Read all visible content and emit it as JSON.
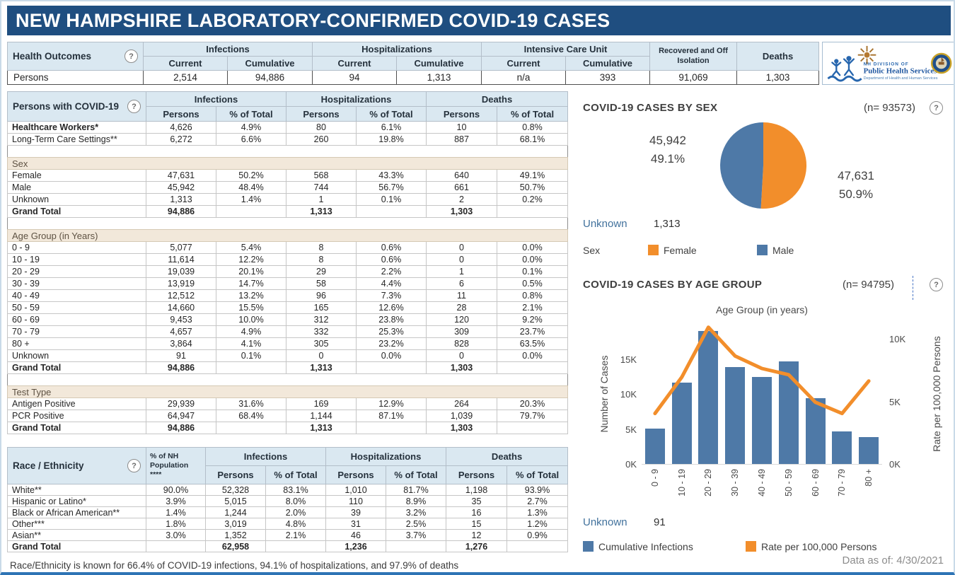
{
  "title": "NEW HAMPSHIRE LABORATORY-CONFIRMED COVID-19 CASES",
  "icons": {
    "help_glyph": "?"
  },
  "colors": {
    "title_bar": "#1F4E80",
    "header_blue": "#DAE8F1",
    "section_tan": "#F2E8DA",
    "bar_blue": "#4E79A7",
    "line_orange": "#F28E2B",
    "unknown_text": "#41719C"
  },
  "health_outcomes": {
    "title": "Health Outcomes",
    "row_label": "Persons",
    "groups": [
      {
        "label": "Infections",
        "sub": [
          "Current",
          "Cumulative"
        ],
        "values": [
          "2,514",
          "94,886"
        ]
      },
      {
        "label": "Hospitalizations",
        "sub": [
          "Current",
          "Cumulative"
        ],
        "values": [
          "94",
          "1,313"
        ]
      },
      {
        "label": "Intensive Care Unit",
        "sub": [
          "Current",
          "Cumulative"
        ],
        "values": [
          "n/a",
          "393"
        ]
      }
    ],
    "single_columns": [
      {
        "label": "Recovered and Off Isolation",
        "value": "91,069"
      },
      {
        "label": "Deaths",
        "value": "1,303"
      }
    ]
  },
  "persons_table": {
    "title": "Persons with COVID-19",
    "groups": [
      "Infections",
      "Hospitalizations",
      "Deaths"
    ],
    "sub_headers": [
      "Persons",
      "% of Total"
    ],
    "sections": [
      {
        "header": null,
        "rows": [
          {
            "label": "Healthcare Workers*",
            "bold": true,
            "cells": [
              "4,626",
              "4.9%",
              "80",
              "6.1%",
              "10",
              "0.8%"
            ]
          },
          {
            "label": "Long-Term Care Settings**",
            "cells": [
              "6,272",
              "6.6%",
              "260",
              "19.8%",
              "887",
              "68.1%"
            ]
          }
        ]
      },
      {
        "header": "Sex",
        "rows": [
          {
            "label": "Female",
            "cells": [
              "47,631",
              "50.2%",
              "568",
              "43.3%",
              "640",
              "49.1%"
            ]
          },
          {
            "label": "Male",
            "cells": [
              "45,942",
              "48.4%",
              "744",
              "56.7%",
              "661",
              "50.7%"
            ]
          },
          {
            "label": "Unknown",
            "cells": [
              "1,313",
              "1.4%",
              "1",
              "0.1%",
              "2",
              "0.2%"
            ]
          },
          {
            "label": "Grand Total",
            "total": true,
            "cells": [
              "94,886",
              "",
              "1,313",
              "",
              "1,303",
              ""
            ]
          }
        ]
      },
      {
        "header": "Age Group (in Years)",
        "rows": [
          {
            "label": "0 - 9",
            "cells": [
              "5,077",
              "5.4%",
              "8",
              "0.6%",
              "0",
              "0.0%"
            ]
          },
          {
            "label": "10 - 19",
            "cells": [
              "11,614",
              "12.2%",
              "8",
              "0.6%",
              "0",
              "0.0%"
            ]
          },
          {
            "label": "20 - 29",
            "cells": [
              "19,039",
              "20.1%",
              "29",
              "2.2%",
              "1",
              "0.1%"
            ]
          },
          {
            "label": "30 - 39",
            "cells": [
              "13,919",
              "14.7%",
              "58",
              "4.4%",
              "6",
              "0.5%"
            ]
          },
          {
            "label": "40 - 49",
            "cells": [
              "12,512",
              "13.2%",
              "96",
              "7.3%",
              "11",
              "0.8%"
            ]
          },
          {
            "label": "50 - 59",
            "cells": [
              "14,660",
              "15.5%",
              "165",
              "12.6%",
              "28",
              "2.1%"
            ]
          },
          {
            "label": "60 - 69",
            "cells": [
              "9,453",
              "10.0%",
              "312",
              "23.8%",
              "120",
              "9.2%"
            ]
          },
          {
            "label": "70 - 79",
            "cells": [
              "4,657",
              "4.9%",
              "332",
              "25.3%",
              "309",
              "23.7%"
            ]
          },
          {
            "label": "80 +",
            "cells": [
              "3,864",
              "4.1%",
              "305",
              "23.2%",
              "828",
              "63.5%"
            ]
          },
          {
            "label": "Unknown",
            "cells": [
              "91",
              "0.1%",
              "0",
              "0.0%",
              "0",
              "0.0%"
            ]
          },
          {
            "label": "Grand Total",
            "total": true,
            "cells": [
              "94,886",
              "",
              "1,313",
              "",
              "1,303",
              ""
            ]
          }
        ]
      },
      {
        "header": "Test Type",
        "rows": [
          {
            "label": "Antigen Positive",
            "cells": [
              "29,939",
              "31.6%",
              "169",
              "12.9%",
              "264",
              "20.3%"
            ]
          },
          {
            "label": "PCR Positive",
            "cells": [
              "64,947",
              "68.4%",
              "1,144",
              "87.1%",
              "1,039",
              "79.7%"
            ]
          },
          {
            "label": "Grand Total",
            "total": true,
            "cells": [
              "94,886",
              "",
              "1,313",
              "",
              "1,303",
              ""
            ]
          }
        ]
      }
    ]
  },
  "race_table": {
    "title": "Race / Ethnicity",
    "pop_header": "% of NH\nPopulation\n****",
    "groups": [
      "Infections",
      "Hospitalizations",
      "Deaths"
    ],
    "sub_headers": [
      "Persons",
      "% of Total"
    ],
    "rows": [
      {
        "label": "White**",
        "pop": "90.0%",
        "cells": [
          "52,328",
          "83.1%",
          "1,010",
          "81.7%",
          "1,198",
          "93.9%"
        ]
      },
      {
        "label": "Hispanic or Latino*",
        "pop": "3.9%",
        "cells": [
          "5,015",
          "8.0%",
          "110",
          "8.9%",
          "35",
          "2.7%"
        ]
      },
      {
        "label": "Black or African American**",
        "pop": "1.4%",
        "cells": [
          "1,244",
          "2.0%",
          "39",
          "3.2%",
          "16",
          "1.3%"
        ]
      },
      {
        "label": "Other***",
        "pop": "1.8%",
        "cells": [
          "3,019",
          "4.8%",
          "31",
          "2.5%",
          "15",
          "1.2%"
        ]
      },
      {
        "label": "Asian**",
        "pop": "3.0%",
        "cells": [
          "1,352",
          "2.1%",
          "46",
          "3.7%",
          "12",
          "0.9%"
        ]
      },
      {
        "label": "Grand Total",
        "total": true,
        "pop": "",
        "cells": [
          "62,958",
          "",
          "1,236",
          "",
          "1,276",
          ""
        ]
      }
    ],
    "footnote": "Race/Ethnicity is known for 66.4% of COVID-19 infections, 94.1% of hospitalizations, and 97.9% of deaths"
  },
  "chart_data": [
    {
      "type": "pie",
      "title": "COVID-19 CASES BY SEX",
      "n_label": "(n= 93573)",
      "slices": [
        {
          "label": "Male",
          "value": 45942,
          "pct": 49.1,
          "display": "45,942",
          "pct_display": "49.1%",
          "color": "#4E79A7"
        },
        {
          "label": "Female",
          "value": 47631,
          "pct": 50.9,
          "display": "47,631",
          "pct_display": "50.9%",
          "color": "#F28E2B"
        }
      ],
      "unknown_label": "Unknown",
      "unknown_value": "1,313",
      "legend_title": "Sex",
      "legend": [
        {
          "label": "Female",
          "color": "#F28E2B"
        },
        {
          "label": "Male",
          "color": "#4E79A7"
        }
      ]
    },
    {
      "type": "bar+line",
      "title": "COVID-19 CASES BY AGE GROUP",
      "n_label": "(n= 94795)",
      "axis_title": "Age Group (in years)",
      "categories": [
        "0 - 9",
        "10 - 19",
        "20 - 29",
        "30 - 39",
        "40 - 49",
        "50 - 59",
        "60 - 69",
        "70 - 79",
        "80 +"
      ],
      "series": [
        {
          "name": "Cumulative Infections",
          "type": "bar",
          "axis": "left",
          "color": "#4E79A7",
          "values": [
            5077,
            11614,
            19039,
            13919,
            12512,
            14660,
            9453,
            4657,
            3864
          ]
        },
        {
          "name": "Rate per 100,000 Persons",
          "type": "line",
          "axis": "right",
          "color": "#F28E2B",
          "values": [
            4100,
            7000,
            11000,
            8700,
            7700,
            7200,
            5000,
            4100,
            6700
          ]
        }
      ],
      "left_axis": {
        "label": "Number of Cases",
        "ticks": [
          "0K",
          "5K",
          "10K",
          "15K"
        ],
        "tick_step": 5000
      },
      "right_axis": {
        "label": "Rate per 100,000 Persons",
        "ticks": [
          "0K",
          "5K",
          "10K"
        ],
        "tick_step": 5000
      },
      "unknown_label": "Unknown",
      "unknown_value": "91"
    }
  ],
  "logo": {
    "line1": "NH DIVISION OF",
    "line2": "Public Health Services",
    "line3": "Department of Health and Human Services"
  },
  "footer": {
    "data_as_of_label": "Data as of:",
    "data_as_of_value": "4/30/2021"
  }
}
